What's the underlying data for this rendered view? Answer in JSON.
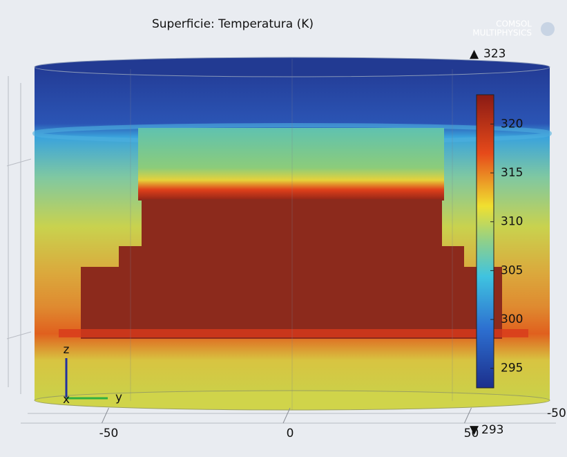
{
  "title": "Superficie: Temperatura (K)",
  "logo": [
    "COMSOL",
    "MULTIPHYSICS"
  ],
  "colorbar": {
    "range": [
      293,
      323
    ],
    "ticks": [
      295,
      300,
      305,
      310,
      315,
      320
    ]
  },
  "axes": {
    "y_ticks": [
      -50,
      0,
      50
    ],
    "x_edge_label": "-50",
    "triad": [
      "z",
      "x",
      "y"
    ]
  }
}
